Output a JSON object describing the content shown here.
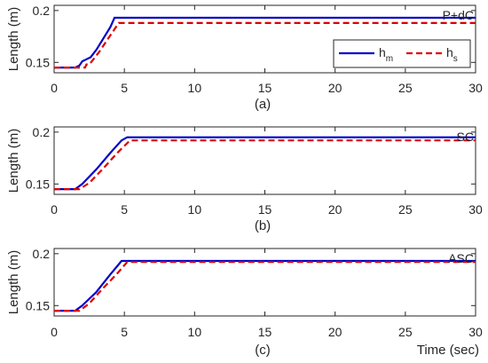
{
  "chart_data": [
    {
      "type": "line",
      "panel_caption": "(a)",
      "annotation": "P+dC",
      "ylabel": "Length (m)",
      "xlabel": "",
      "xlim": [
        0,
        30
      ],
      "ylim": [
        0.14,
        0.205
      ],
      "xticks": [
        "0",
        "5",
        "10",
        "15",
        "20",
        "25",
        "30"
      ],
      "yticks": [
        {
          "value": 0.15,
          "label": "0.15"
        },
        {
          "value": 0.2,
          "label": "0.2"
        }
      ],
      "grid": false,
      "legend": {
        "placement": "right",
        "entries": [
          {
            "base": "h",
            "sub": "m",
            "series": 0
          },
          {
            "base": "h",
            "sub": "s",
            "series": 1
          }
        ]
      },
      "series": [
        {
          "color": "#0000c8",
          "dash": "solid",
          "points": [
            [
              0,
              0.145
            ],
            [
              1.5,
              0.145
            ],
            [
              1.8,
              0.147
            ],
            [
              2.0,
              0.151
            ],
            [
              2.3,
              0.153
            ],
            [
              2.6,
              0.155
            ],
            [
              3.0,
              0.162
            ],
            [
              3.5,
              0.173
            ],
            [
              4.0,
              0.184
            ],
            [
              4.3,
              0.193
            ],
            [
              30,
              0.193
            ]
          ]
        },
        {
          "color": "#dc0000",
          "dash": "dashed",
          "points": [
            [
              0,
              0.145
            ],
            [
              2.2,
              0.145
            ],
            [
              2.3,
              0.148
            ],
            [
              2.5,
              0.148
            ],
            [
              2.8,
              0.153
            ],
            [
              3.2,
              0.16
            ],
            [
              3.7,
              0.17
            ],
            [
              4.2,
              0.18
            ],
            [
              4.6,
              0.188
            ],
            [
              30,
              0.188
            ]
          ]
        }
      ]
    },
    {
      "type": "line",
      "panel_caption": "(b)",
      "annotation": "SC",
      "ylabel": "Length (m)",
      "xlabel": "",
      "xlim": [
        0,
        30
      ],
      "ylim": [
        0.14,
        0.205
      ],
      "xticks": [
        "0",
        "5",
        "10",
        "15",
        "20",
        "25",
        "30"
      ],
      "yticks": [
        {
          "value": 0.15,
          "label": "0.15"
        },
        {
          "value": 0.2,
          "label": "0.2"
        }
      ],
      "grid": false,
      "series": [
        {
          "color": "#0000c8",
          "dash": "solid",
          "points": [
            [
              0,
              0.145
            ],
            [
              1.5,
              0.145
            ],
            [
              2.0,
              0.15
            ],
            [
              3.0,
              0.164
            ],
            [
              4.0,
              0.18
            ],
            [
              4.8,
              0.192
            ],
            [
              5.2,
              0.195
            ],
            [
              30,
              0.195
            ]
          ]
        },
        {
          "color": "#dc0000",
          "dash": "dashed",
          "points": [
            [
              0,
              0.145
            ],
            [
              1.8,
              0.145
            ],
            [
              2.5,
              0.151
            ],
            [
              3.5,
              0.165
            ],
            [
              4.5,
              0.18
            ],
            [
              5.4,
              0.192
            ],
            [
              30,
              0.192
            ]
          ]
        }
      ]
    },
    {
      "type": "line",
      "panel_caption": "(c)",
      "annotation": "ASC",
      "ylabel": "Length (m)",
      "xlabel": "Time (sec)",
      "xlim": [
        0,
        30
      ],
      "ylim": [
        0.14,
        0.205
      ],
      "xticks": [
        "0",
        "5",
        "10",
        "15",
        "20",
        "25",
        "30"
      ],
      "yticks": [
        {
          "value": 0.15,
          "label": "0.15"
        },
        {
          "value": 0.2,
          "label": "0.2"
        }
      ],
      "grid": false,
      "series": [
        {
          "color": "#0000c8",
          "dash": "solid",
          "points": [
            [
              0,
              0.145
            ],
            [
              1.5,
              0.145
            ],
            [
              2.0,
              0.15
            ],
            [
              3.0,
              0.163
            ],
            [
              4.0,
              0.18
            ],
            [
              4.8,
              0.193
            ],
            [
              30,
              0.193
            ]
          ]
        },
        {
          "color": "#dc0000",
          "dash": "dashed",
          "points": [
            [
              0,
              0.145
            ],
            [
              1.8,
              0.145
            ],
            [
              2.5,
              0.152
            ],
            [
              3.5,
              0.167
            ],
            [
              4.5,
              0.181
            ],
            [
              5.2,
              0.192
            ],
            [
              30,
              0.192
            ]
          ]
        }
      ]
    }
  ]
}
